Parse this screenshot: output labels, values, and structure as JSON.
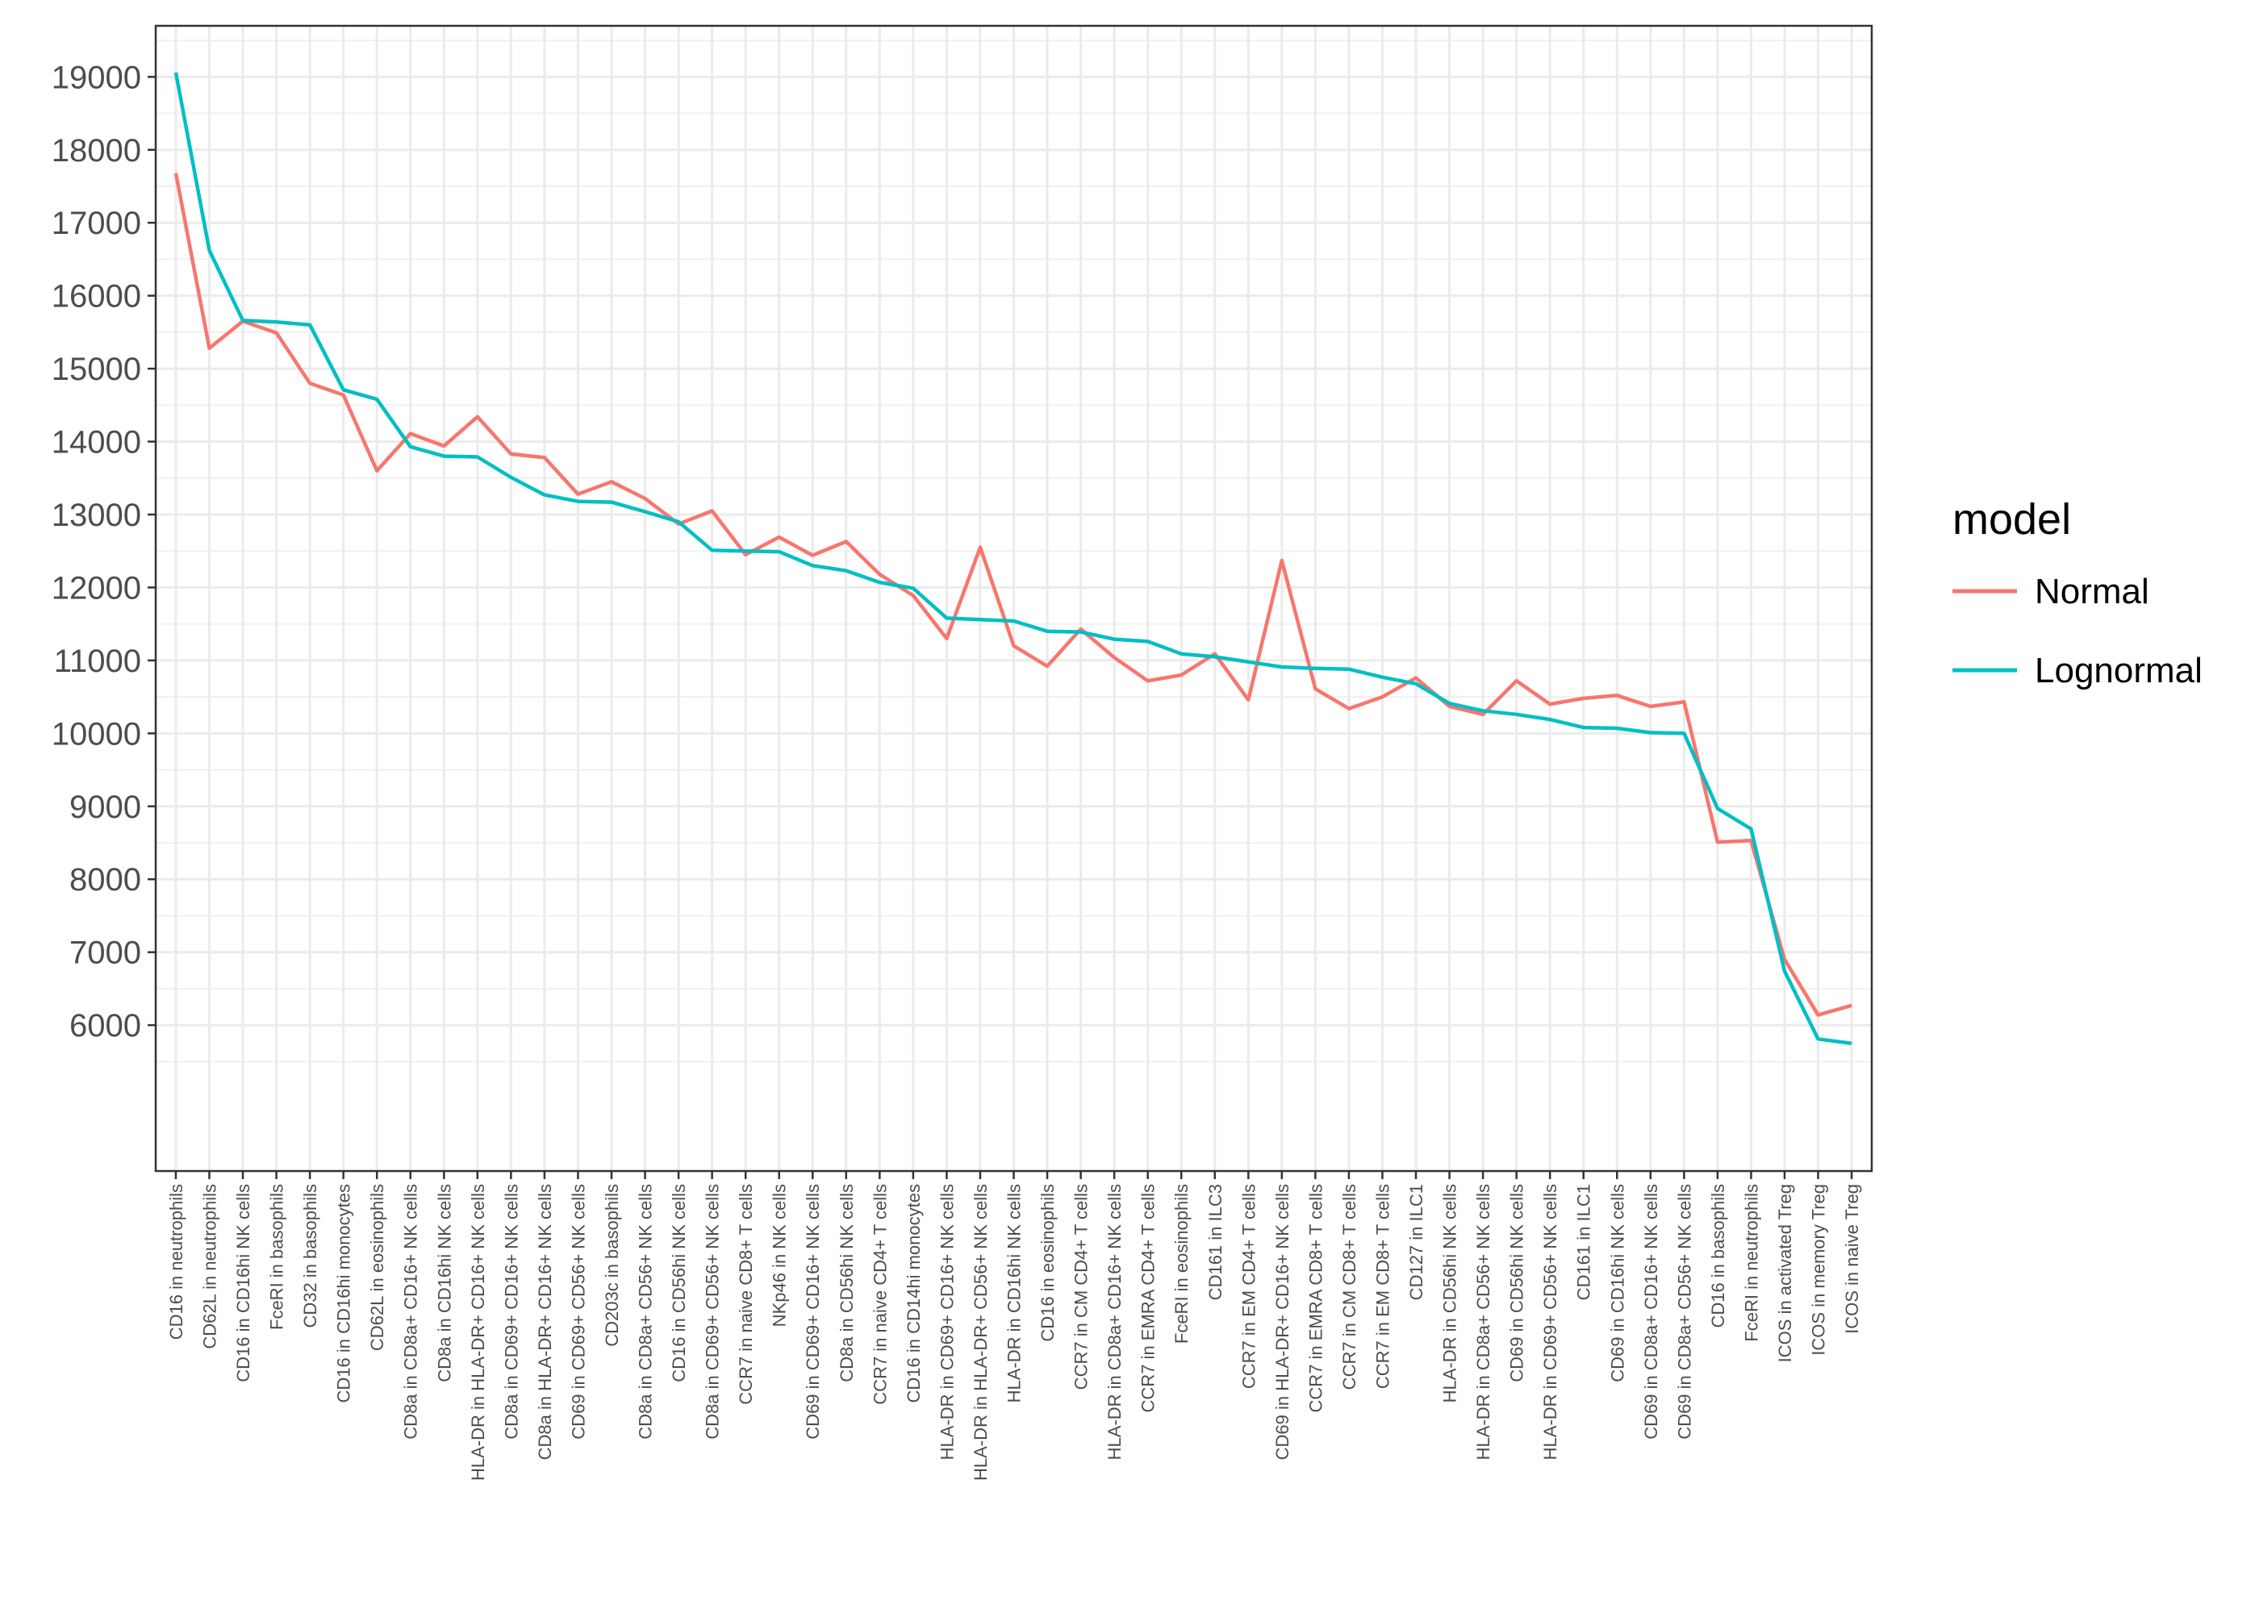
{
  "chart_data": {
    "type": "line",
    "xlabel": "",
    "ylabel": "",
    "ylim": [
      4000,
      19700
    ],
    "yticks": [
      6000,
      7000,
      8000,
      9000,
      10000,
      11000,
      12000,
      13000,
      14000,
      15000,
      16000,
      17000,
      18000,
      19000
    ],
    "grid": true,
    "legend": {
      "title": "model",
      "position": "right"
    },
    "categories": [
      "CD16 in neutrophils",
      "CD62L in neutrophils",
      "CD16 in CD16hi NK cells",
      "FceRI in basophils",
      "CD32 in basophils",
      "CD16 in CD16hi monocytes",
      "CD62L in eosinophils",
      "CD8a in CD8a+ CD16+ NK cells",
      "CD8a in CD16hi NK cells",
      "HLA-DR in HLA-DR+ CD16+ NK cells",
      "CD8a in CD69+ CD16+ NK cells",
      "CD8a in HLA-DR+ CD16+ NK cells",
      "CD69 in CD69+ CD56+ NK cells",
      "CD203c in basophils",
      "CD8a in CD8a+ CD56+ NK cells",
      "CD16 in CD56hi NK cells",
      "CD8a in CD69+ CD56+ NK cells",
      "CCR7 in naive CD8+ T cells",
      "NKp46 in NK cells",
      "CD69 in CD69+ CD16+ NK cells",
      "CD8a in CD56hi NK cells",
      "CCR7 in naive CD4+ T cells",
      "CD16 in CD14hi monocytes",
      "HLA-DR in CD69+ CD16+ NK cells",
      "HLA-DR in HLA-DR+ CD56+ NK cells",
      "HLA-DR in CD16hi NK cells",
      "CD16 in eosinophils",
      "CCR7 in CM CD4+ T cells",
      "HLA-DR in CD8a+ CD16+ NK cells",
      "CCR7 in EMRA CD4+ T cells",
      "FceRI in eosinophils",
      "CD161 in ILC3",
      "CCR7 in EM CD4+ T cells",
      "CD69 in HLA-DR+ CD16+ NK cells",
      "CCR7 in EMRA CD8+ T cells",
      "CCR7 in CM CD8+ T cells",
      "CCR7 in EM CD8+ T cells",
      "CD127 in ILC1",
      "HLA-DR in CD56hi NK cells",
      "HLA-DR in CD8a+ CD56+ NK cells",
      "CD69 in CD56hi NK cells",
      "HLA-DR in CD69+ CD56+ NK cells",
      "CD161 in ILC1",
      "CD69 in CD16hi NK cells",
      "CD69 in CD8a+ CD16+ NK cells",
      "CD69 in CD8a+ CD56+ NK cells",
      "CD16 in basophils",
      "FceRI in neutrophils",
      "ICOS in activated Treg",
      "ICOS in memory Treg",
      "ICOS in naive Treg"
    ],
    "series": [
      {
        "name": "Normal",
        "color": "#F8766D",
        "values": [
          17680,
          15280,
          15650,
          15490,
          14800,
          14640,
          13600,
          14110,
          13940,
          14340,
          13830,
          13780,
          13280,
          13450,
          13220,
          12870,
          13050,
          12450,
          12690,
          12440,
          12630,
          12180,
          11890,
          11300,
          12550,
          11200,
          10920,
          11430,
          11040,
          10720,
          10800,
          11090,
          10460,
          12370,
          10610,
          10340,
          10500,
          10760,
          10370,
          10260,
          10720,
          10400,
          10480,
          10520,
          10370,
          10430,
          8510,
          8530,
          6900,
          6140,
          6270
        ]
      },
      {
        "name": "Lognormal",
        "color": "#00BFC4",
        "values": [
          19060,
          16620,
          15660,
          15640,
          15600,
          14710,
          14580,
          13930,
          13800,
          13790,
          13510,
          13270,
          13180,
          13170,
          13040,
          12900,
          12510,
          12500,
          12490,
          12300,
          12230,
          12070,
          11990,
          11580,
          11560,
          11540,
          11400,
          11390,
          11290,
          11260,
          11090,
          11050,
          10980,
          10910,
          10890,
          10880,
          10770,
          10680,
          10410,
          10310,
          10260,
          10190,
          10080,
          10070,
          10010,
          10000,
          8970,
          8690,
          6740,
          5810,
          5750
        ]
      }
    ]
  }
}
